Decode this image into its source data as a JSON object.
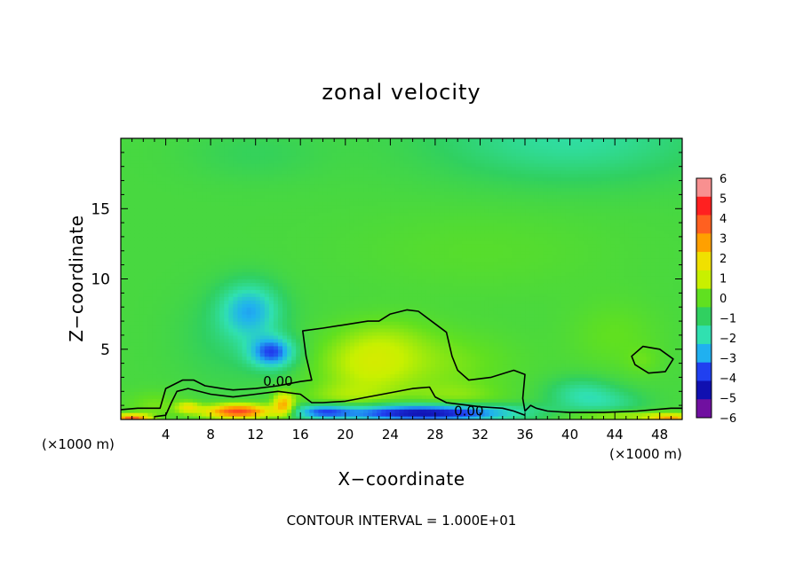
{
  "chart_data": {
    "type": "heatmap",
    "title": "zonal velocity",
    "xlabel": "X−coordinate",
    "ylabel": "Z−coordinate",
    "x_unit_left": "(×1000 m)",
    "x_unit_right": "(×1000 m)",
    "footer": "CONTOUR INTERVAL = 1.000E+01",
    "xlim": [
      0,
      50
    ],
    "ylim": [
      0,
      20
    ],
    "x_ticks": [
      {
        "value": 4,
        "label": "4"
      },
      {
        "value": 8,
        "label": "8"
      },
      {
        "value": 12,
        "label": "12"
      },
      {
        "value": 16,
        "label": "16"
      },
      {
        "value": 20,
        "label": "20"
      },
      {
        "value": 24,
        "label": "24"
      },
      {
        "value": 28,
        "label": "28"
      },
      {
        "value": 32,
        "label": "32"
      },
      {
        "value": 36,
        "label": "36"
      },
      {
        "value": 40,
        "label": "40"
      },
      {
        "value": 44,
        "label": "44"
      },
      {
        "value": 48,
        "label": "48"
      }
    ],
    "y_ticks": [
      {
        "value": 5,
        "label": "5"
      },
      {
        "value": 10,
        "label": "10"
      },
      {
        "value": 15,
        "label": "15"
      }
    ],
    "colorbar": {
      "range": [
        -6,
        6
      ],
      "labels": [
        "6",
        "5",
        "4",
        "3",
        "2",
        "1",
        "0",
        "−1",
        "−2",
        "−3",
        "−4",
        "−5",
        "−6"
      ],
      "colors": [
        "#f89090",
        "#ff2020",
        "#ff6020",
        "#ffa000",
        "#f0e000",
        "#c8f000",
        "#60e020",
        "#30d060",
        "#30e0b0",
        "#20b0f0",
        "#2040f0",
        "#1010b0",
        "#7010a0"
      ]
    },
    "contour_labels": [
      {
        "text": "0.00",
        "x": 14.0,
        "z": 2.7
      },
      {
        "text": "0.00",
        "x": 31.0,
        "z": 0.6
      }
    ],
    "background_value": -0.5,
    "features": [
      {
        "x": 40.0,
        "z": 20.0,
        "sx": 12.0,
        "sz": 3.0,
        "amp": -1.3
      },
      {
        "x": 12.0,
        "z": 19.0,
        "sx": 6.0,
        "sz": 2.0,
        "amp": -0.4
      },
      {
        "x": 32.0,
        "z": 12.0,
        "sx": 12.0,
        "sz": 3.0,
        "amp": 0.3
      },
      {
        "x": 11.5,
        "z": 7.8,
        "sx": 2.6,
        "sz": 1.9,
        "amp": -2.2
      },
      {
        "x": 13.5,
        "z": 4.8,
        "sx": 2.0,
        "sz": 1.1,
        "amp": -3.2
      },
      {
        "x": 10.0,
        "z": 6.0,
        "sx": 4.5,
        "sz": 3.2,
        "amp": -0.6
      },
      {
        "x": 22.0,
        "z": 4.0,
        "sx": 4.5,
        "sz": 2.3,
        "amp": 1.5
      },
      {
        "x": 29.0,
        "z": 4.0,
        "sx": 6.0,
        "sz": 2.3,
        "amp": 0.7
      },
      {
        "x": 24.0,
        "z": 6.0,
        "sx": 4.0,
        "sz": 1.6,
        "amp": 0.4
      },
      {
        "x": 44.0,
        "z": 6.0,
        "sx": 4.0,
        "sz": 2.5,
        "amp": 0.5
      },
      {
        "x": 46.5,
        "z": 4.2,
        "sx": 1.6,
        "sz": 1.0,
        "amp": 0.4
      },
      {
        "x": 3.0,
        "z": 1.0,
        "sx": 2.5,
        "sz": 1.0,
        "amp": 0.7
      },
      {
        "x": 10.5,
        "z": 0.6,
        "sx": 3.0,
        "sz": 0.5,
        "amp": 5.0
      },
      {
        "x": 14.5,
        "z": 1.1,
        "sx": 0.9,
        "sz": 0.8,
        "amp": 3.2
      },
      {
        "x": 6.0,
        "z": 0.9,
        "sx": 1.0,
        "sz": 0.4,
        "amp": 2.0
      },
      {
        "x": 1.0,
        "z": 0.1,
        "sx": 1.5,
        "sz": 0.3,
        "amp": 4.5
      },
      {
        "x": 49.0,
        "z": 0.1,
        "sx": 2.0,
        "sz": 0.3,
        "amp": 3.0
      },
      {
        "x": 44.0,
        "z": 0.3,
        "sx": 5.0,
        "sz": 0.4,
        "amp": 1.5
      },
      {
        "x": 27.0,
        "z": 0.5,
        "sx": 8.0,
        "sz": 0.6,
        "amp": -4.8
      },
      {
        "x": 18.0,
        "z": 0.6,
        "sx": 2.5,
        "sz": 0.5,
        "amp": -2.5
      },
      {
        "x": 20.0,
        "z": 1.6,
        "sx": 4.0,
        "sz": 1.0,
        "amp": 0.8
      },
      {
        "x": 30.0,
        "z": 1.6,
        "sx": 4.0,
        "sz": 1.0,
        "amp": 0.7
      },
      {
        "x": 41.0,
        "z": 1.8,
        "sx": 3.0,
        "sz": 1.2,
        "amp": -1.3
      },
      {
        "x": 44.0,
        "z": 1.2,
        "sx": 3.0,
        "sz": 1.0,
        "amp": -0.8
      }
    ],
    "contour_lines": [
      {
        "name": "zero-line-lower",
        "points": [
          [
            0,
            0.7
          ],
          [
            1.5,
            0.8
          ],
          [
            3.5,
            0.8
          ],
          [
            4,
            2.2
          ],
          [
            5.5,
            2.8
          ],
          [
            6.5,
            2.8
          ],
          [
            7.5,
            2.4
          ],
          [
            9,
            2.2
          ],
          [
            10,
            2.1
          ],
          [
            12,
            2.2
          ],
          [
            14,
            2.4
          ],
          [
            16,
            2.7
          ],
          [
            17,
            2.8
          ],
          [
            16.5,
            4.5
          ],
          [
            16.2,
            6.3
          ],
          [
            18,
            6.5
          ],
          [
            22,
            7.0
          ],
          [
            23,
            7.0
          ],
          [
            24,
            7.5
          ],
          [
            25.5,
            7.8
          ],
          [
            26.5,
            7.7
          ],
          [
            28,
            6.8
          ],
          [
            29,
            6.2
          ],
          [
            29.5,
            4.5
          ],
          [
            30,
            3.5
          ],
          [
            31,
            2.8
          ],
          [
            33,
            3.0
          ],
          [
            35,
            3.5
          ],
          [
            36,
            3.2
          ],
          [
            35.8,
            1.5
          ],
          [
            36,
            0.6
          ],
          [
            36.5,
            1.0
          ],
          [
            37,
            0.8
          ],
          [
            38,
            0.6
          ],
          [
            40,
            0.5
          ],
          [
            43,
            0.5
          ],
          [
            46,
            0.6
          ],
          [
            49,
            0.8
          ],
          [
            50,
            0.8
          ]
        ]
      },
      {
        "name": "zero-line-inner",
        "points": [
          [
            3,
            0.2
          ],
          [
            4,
            0.3
          ],
          [
            4.5,
            1.2
          ],
          [
            5,
            2.0
          ],
          [
            6,
            2.2
          ],
          [
            8,
            1.8
          ],
          [
            10,
            1.6
          ],
          [
            12,
            1.8
          ],
          [
            14,
            2.0
          ],
          [
            16,
            1.8
          ],
          [
            17,
            1.2
          ],
          [
            18,
            1.2
          ],
          [
            20,
            1.3
          ],
          [
            22,
            1.6
          ],
          [
            24,
            1.9
          ],
          [
            26,
            2.2
          ],
          [
            27.5,
            2.3
          ],
          [
            28,
            1.6
          ],
          [
            29,
            1.2
          ],
          [
            32,
            0.9
          ],
          [
            34,
            0.8
          ],
          [
            35,
            0.6
          ],
          [
            36,
            0.3
          ]
        ]
      },
      {
        "name": "zero-loop-right",
        "closed": true,
        "points": [
          [
            45.5,
            4.5
          ],
          [
            46.5,
            5.2
          ],
          [
            48,
            5.0
          ],
          [
            49.2,
            4.3
          ],
          [
            48.5,
            3.4
          ],
          [
            47,
            3.3
          ],
          [
            45.8,
            3.9
          ]
        ]
      }
    ]
  }
}
